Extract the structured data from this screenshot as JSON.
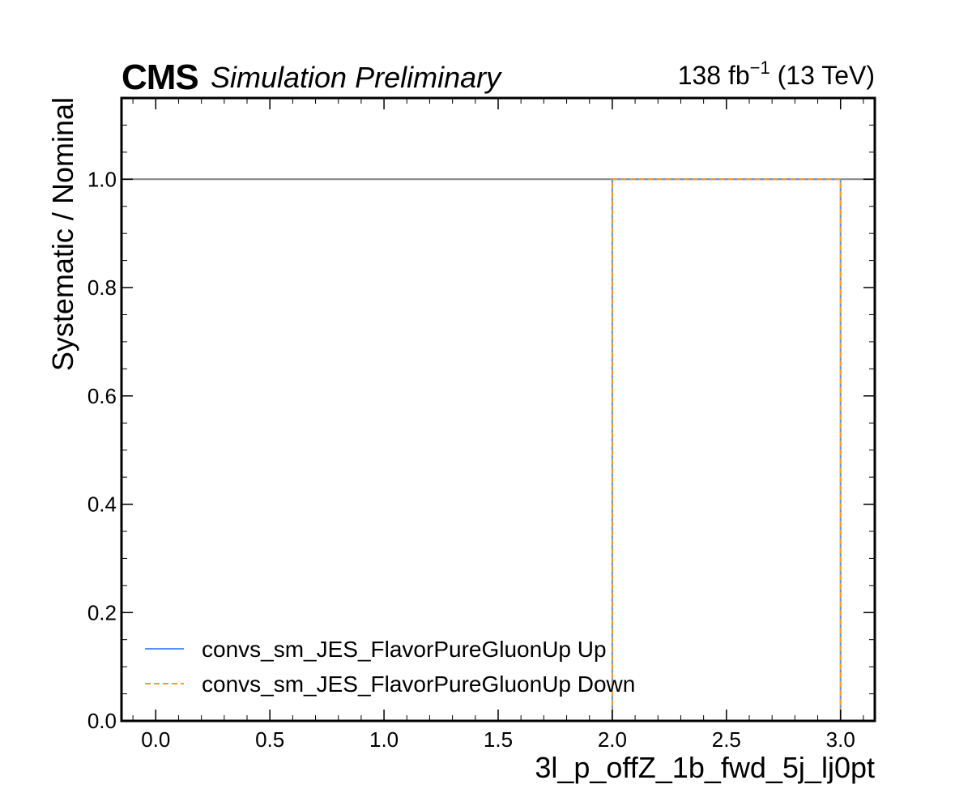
{
  "header": {
    "experiment": "CMS",
    "status": "Simulation Preliminary",
    "luminosity": "138 fb",
    "luminosity_exponent": "−1",
    "energy": " (13 TeV)"
  },
  "colors": {
    "up": "#5790fc",
    "down": "#f89c20",
    "reference": "#808080",
    "axes": "#000000"
  },
  "chart_data": {
    "type": "line",
    "title": "",
    "xlabel": "3l_p_offZ_1b_fwd_5j_lj0pt",
    "ylabel": "Systematic / Nominal",
    "xlim": [
      -0.15,
      3.15
    ],
    "ylim": [
      0.0,
      1.15
    ],
    "x_ticks": [
      "0.0",
      "0.5",
      "1.0",
      "1.5",
      "2.0",
      "2.5",
      "3.0"
    ],
    "x_tick_values": [
      0.0,
      0.5,
      1.0,
      1.5,
      2.0,
      2.5,
      3.0
    ],
    "y_ticks": [
      "0.0",
      "0.2",
      "0.4",
      "0.6",
      "0.8",
      "1.0"
    ],
    "y_tick_values": [
      0.0,
      0.2,
      0.4,
      0.6,
      0.8,
      1.0
    ],
    "reference_line": 1.0,
    "grid": false,
    "legend_position": "bottom-left",
    "series": [
      {
        "name": "convs_sm_JES_FlavorPureGluonUp Up",
        "style": "solid",
        "bin_edges": [
          0,
          1,
          2,
          3
        ],
        "values": [
          0,
          0,
          1.0
        ]
      },
      {
        "name": "convs_sm_JES_FlavorPureGluonUp Down",
        "style": "dashed",
        "bin_edges": [
          0,
          1,
          2,
          3
        ],
        "values": [
          0,
          0,
          1.0
        ]
      }
    ]
  }
}
